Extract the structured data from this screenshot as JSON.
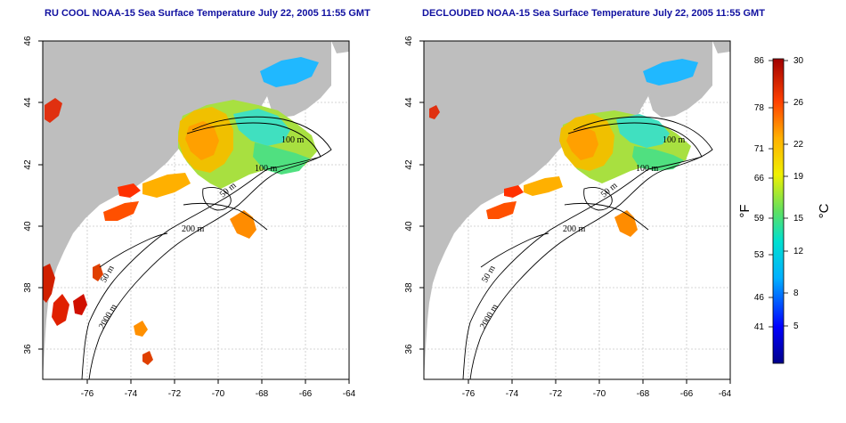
{
  "panels": [
    {
      "title": "RU COOL NOAA-15 Sea Surface Temperature July 22, 2005 11:55 GMT",
      "x_ticks": [
        "-76",
        "-74",
        "-72",
        "-70",
        "-68",
        "-66",
        "-64"
      ],
      "y_ticks": [
        "46",
        "44",
        "42",
        "40",
        "38",
        "36"
      ],
      "contour_labels": [
        "100 m",
        "100 m",
        "50 m",
        "200 m",
        "50 m",
        "2000 m"
      ]
    },
    {
      "title": "DECLOUDED NOAA-15 Sea Surface Temperature July 22, 2005 11:55 GMT",
      "x_ticks": [
        "-76",
        "-74",
        "-72",
        "-70",
        "-68",
        "-66",
        "-64"
      ],
      "y_ticks": [
        "46",
        "44",
        "42",
        "40",
        "38",
        "36"
      ],
      "contour_labels": [
        "100 m",
        "100 m",
        "50 m",
        "200 m",
        "50 m",
        "2000 m"
      ]
    }
  ],
  "colorbar": {
    "fahrenheit_unit": "°F",
    "celsius_unit": "°C",
    "fahrenheit_ticks": [
      "86",
      "78",
      "71",
      "66",
      "59",
      "53",
      "46",
      "41"
    ],
    "celsius_ticks": [
      "30",
      "26",
      "22",
      "19",
      "15",
      "12",
      "8",
      "5"
    ],
    "colors": {
      "cold": "#0000a0",
      "cool": "#00c0ff",
      "mid": "#40e080",
      "warm": "#f0e000",
      "hot": "#ff8000",
      "hottest": "#a00000"
    }
  },
  "colors": {
    "land": "#bebebe",
    "title_text": "#1010a0",
    "grid": "#c8c8c8"
  }
}
